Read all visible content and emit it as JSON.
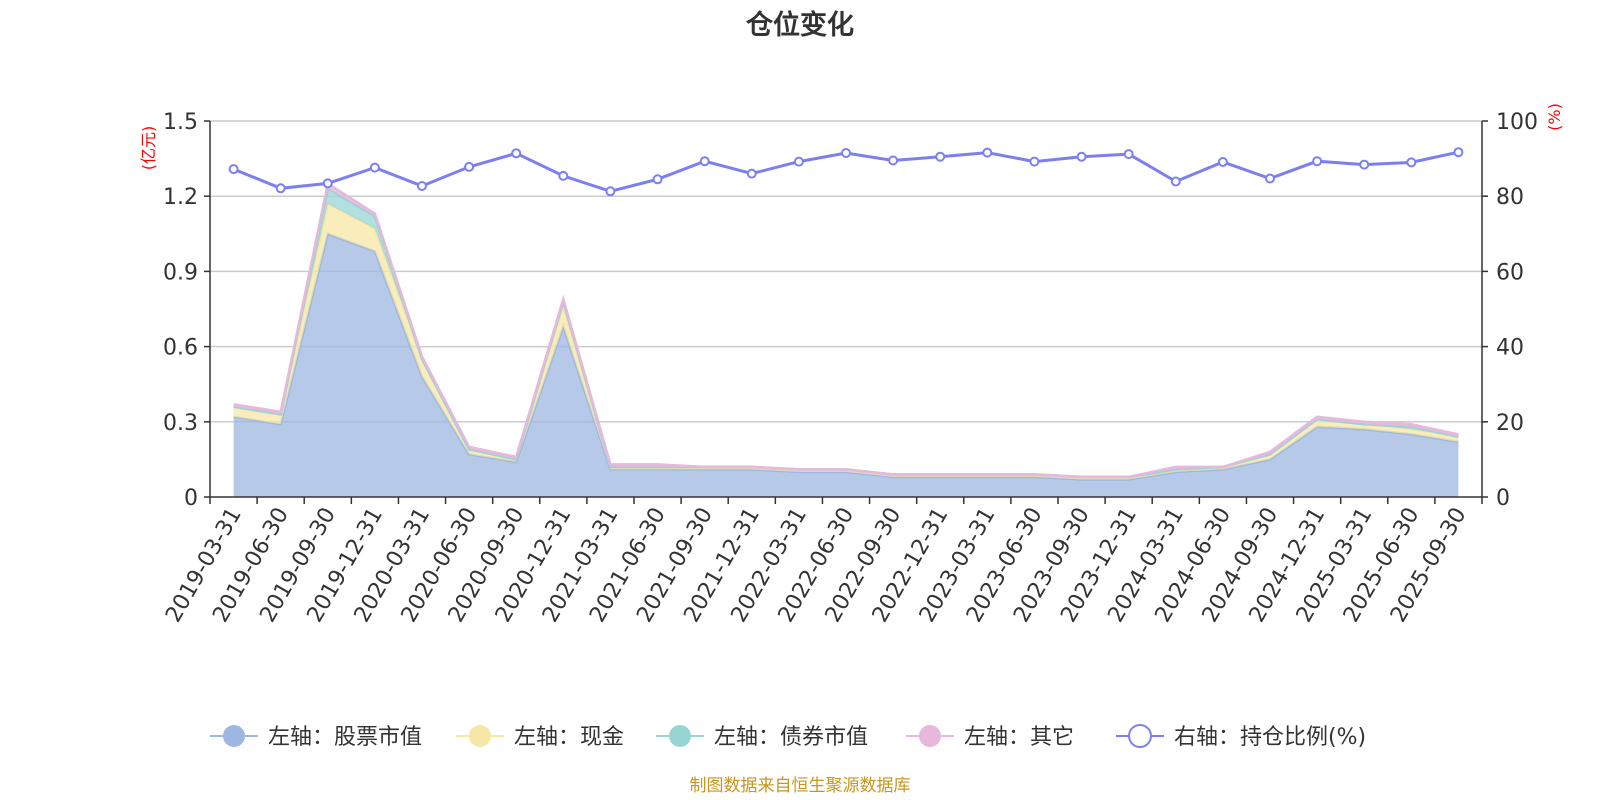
{
  "chart_data": {
    "type": "area",
    "title": "仓位变化",
    "left_unit": "(亿元)",
    "right_unit": "(%)",
    "left_ylim": [
      0,
      1.5
    ],
    "left_ticks": [
      "0",
      "0.3",
      "0.6",
      "0.9",
      "1.2",
      "1.5"
    ],
    "right_ylim": [
      0,
      100
    ],
    "right_ticks": [
      "0",
      "20",
      "40",
      "60",
      "80",
      "100"
    ],
    "grid": true,
    "legend_position": "bottom-center",
    "categories": [
      "2019-03-31",
      "2019-06-30",
      "2019-09-30",
      "2019-12-31",
      "2020-03-31",
      "2020-06-30",
      "2020-09-30",
      "2020-12-31",
      "2021-03-31",
      "2021-06-30",
      "2021-09-30",
      "2021-12-31",
      "2022-03-31",
      "2022-06-30",
      "2022-09-30",
      "2022-12-31",
      "2023-03-31",
      "2023-06-30",
      "2023-09-30",
      "2023-12-31",
      "2024-03-31",
      "2024-06-30",
      "2024-09-30",
      "2024-12-31",
      "2025-03-31",
      "2025-06-30",
      "2025-09-30"
    ],
    "series": [
      {
        "name": "左轴：股票市值",
        "axis": "left",
        "color": "#9db7e0",
        "values": [
          0.32,
          0.29,
          1.05,
          0.98,
          0.48,
          0.17,
          0.14,
          0.68,
          0.11,
          0.11,
          0.11,
          0.11,
          0.1,
          0.1,
          0.08,
          0.08,
          0.08,
          0.08,
          0.07,
          0.07,
          0.1,
          0.11,
          0.15,
          0.28,
          0.27,
          0.25,
          0.22
        ]
      },
      {
        "name": "左轴：现金",
        "axis": "left",
        "color": "#f7e7a6",
        "values": [
          0.04,
          0.04,
          0.12,
          0.09,
          0.07,
          0.02,
          0.01,
          0.08,
          0.01,
          0.01,
          0.01,
          0.01,
          0.01,
          0.01,
          0.01,
          0.01,
          0.01,
          0.01,
          0.01,
          0.01,
          0.01,
          0.01,
          0.02,
          0.03,
          0.02,
          0.02,
          0.02
        ]
      },
      {
        "name": "左轴：债券市值",
        "axis": "left",
        "color": "#98d4d4",
        "values": [
          0,
          0,
          0.06,
          0.05,
          0,
          0,
          0,
          0.02,
          0,
          0,
          0,
          0,
          0,
          0,
          0,
          0,
          0,
          0,
          0,
          0,
          0,
          0,
          0,
          0,
          0,
          0.01,
          0
        ]
      },
      {
        "name": "左轴：其它",
        "axis": "left",
        "color": "#e7b7dc",
        "values": [
          0.01,
          0.01,
          0.02,
          0.01,
          0.01,
          0.01,
          0.01,
          0.01,
          0.01,
          0.01,
          0,
          0,
          0,
          0,
          0,
          0,
          0,
          0,
          0,
          0,
          0.01,
          0,
          0.01,
          0.01,
          0.01,
          0.01,
          0.01
        ]
      },
      {
        "name": "右轴：持仓比例(%)",
        "axis": "right",
        "color": "#7b7ff0",
        "values": [
          87.2,
          82.1,
          83.4,
          87.6,
          82.7,
          87.8,
          91.4,
          85.4,
          81.3,
          84.5,
          89.3,
          86.0,
          89.2,
          91.5,
          89.5,
          90.5,
          91.6,
          89.2,
          90.5,
          91.2,
          83.9,
          89.1,
          84.7,
          89.3,
          88.4,
          89.0,
          91.7
        ]
      }
    ],
    "source_note": "制图数据来自恒生聚源数据库"
  }
}
